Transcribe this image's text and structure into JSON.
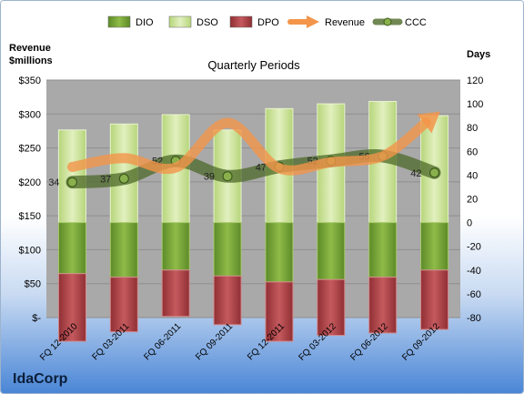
{
  "company": "IdaCorp",
  "colors": {
    "dio": "#7ea63a",
    "dso": "#c9e08f",
    "dpo": "#b34a4e",
    "revenue": "#f3954a",
    "ccc": "#4d6a2a",
    "plot_bg": "#a9a9a9",
    "bg_top": "#ffffff",
    "bg_bottom": "#4a86d6"
  },
  "chart_data": {
    "type": "bar",
    "title": "Quarterly Periods",
    "left_axis_label": [
      "Revenue",
      "$millions"
    ],
    "right_axis_label": "Days",
    "left_ticks": [
      "$350",
      "$300",
      "$250",
      "$200",
      "$150",
      "$100",
      "$50",
      "$-"
    ],
    "right_ticks": [
      "120",
      "100",
      "80",
      "60",
      "40",
      "20",
      "0",
      "-20",
      "-40",
      "-60",
      "-80"
    ],
    "ylim_left": [
      0,
      350
    ],
    "ylim_right": [
      -80,
      120
    ],
    "categories": [
      "FQ 12-2010",
      "FQ 03-2011",
      "FQ 06-2011",
      "FQ 09-2011",
      "FQ 12-2011",
      "FQ 03-2012",
      "FQ 06-2012",
      "FQ 09-2012"
    ],
    "legend": [
      "DIO",
      "DSO",
      "DPO",
      "Revenue",
      "CCC"
    ],
    "legend_position": "top",
    "series": [
      {
        "name": "DIO",
        "axis": "days",
        "values": [
          -43,
          -46,
          -40,
          -45,
          -50,
          -48,
          -46,
          -40
        ]
      },
      {
        "name": "DSO",
        "axis": "days",
        "values": [
          78,
          83,
          91,
          78,
          96,
          100,
          102,
          90
        ]
      },
      {
        "name": "DPO",
        "axis": "days",
        "values": [
          -57,
          -46,
          -39,
          -41,
          -50,
          -47,
          -47,
          -50
        ]
      },
      {
        "name": "Revenue",
        "axis": "revenue",
        "values": [
          222,
          235,
          221,
          287,
          220,
          229,
          238,
          297
        ]
      },
      {
        "name": "CCC",
        "axis": "days",
        "values": [
          34,
          37,
          52,
          39,
          47,
          52,
          56,
          42
        ]
      }
    ],
    "ccc_labels": [
      "34",
      "37",
      "52",
      "39",
      "47",
      "52",
      "56",
      "42"
    ]
  }
}
